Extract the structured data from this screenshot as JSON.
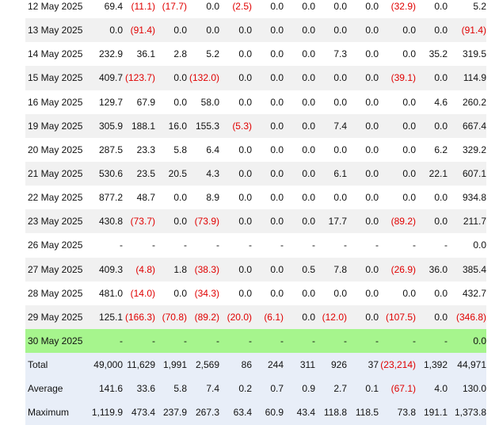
{
  "rows": [
    {
      "date": "12 May 2025",
      "values": [
        "69.4",
        "(11.1)",
        "(17.7)",
        "0.0",
        "(2.5)",
        "0.0",
        "0.0",
        "0.0",
        "0.0",
        "(32.9)",
        "0.0",
        "5.2"
      ]
    },
    {
      "date": "13 May 2025",
      "values": [
        "0.0",
        "(91.4)",
        "0.0",
        "0.0",
        "0.0",
        "0.0",
        "0.0",
        "0.0",
        "0.0",
        "0.0",
        "0.0",
        "(91.4)"
      ]
    },
    {
      "date": "14 May 2025",
      "values": [
        "232.9",
        "36.1",
        "2.8",
        "5.2",
        "0.0",
        "0.0",
        "0.0",
        "7.3",
        "0.0",
        "0.0",
        "35.2",
        "319.5"
      ]
    },
    {
      "date": "15 May 2025",
      "values": [
        "409.7",
        "(123.7)",
        "0.0",
        "(132.0)",
        "0.0",
        "0.0",
        "0.0",
        "0.0",
        "0.0",
        "(39.1)",
        "0.0",
        "114.9"
      ]
    },
    {
      "date": "16 May 2025",
      "values": [
        "129.7",
        "67.9",
        "0.0",
        "58.0",
        "0.0",
        "0.0",
        "0.0",
        "0.0",
        "0.0",
        "0.0",
        "4.6",
        "260.2"
      ]
    },
    {
      "date": "19 May 2025",
      "values": [
        "305.9",
        "188.1",
        "16.0",
        "155.3",
        "(5.3)",
        "0.0",
        "0.0",
        "7.4",
        "0.0",
        "0.0",
        "0.0",
        "667.4"
      ]
    },
    {
      "date": "20 May 2025",
      "values": [
        "287.5",
        "23.3",
        "5.8",
        "6.4",
        "0.0",
        "0.0",
        "0.0",
        "0.0",
        "0.0",
        "0.0",
        "6.2",
        "329.2"
      ]
    },
    {
      "date": "21 May 2025",
      "values": [
        "530.6",
        "23.5",
        "20.5",
        "4.3",
        "0.0",
        "0.0",
        "0.0",
        "6.1",
        "0.0",
        "0.0",
        "22.1",
        "607.1"
      ]
    },
    {
      "date": "22 May 2025",
      "values": [
        "877.2",
        "48.7",
        "0.0",
        "8.9",
        "0.0",
        "0.0",
        "0.0",
        "0.0",
        "0.0",
        "0.0",
        "0.0",
        "934.8"
      ]
    },
    {
      "date": "23 May 2025",
      "values": [
        "430.8",
        "(73.7)",
        "0.0",
        "(73.9)",
        "0.0",
        "0.0",
        "0.0",
        "17.7",
        "0.0",
        "(89.2)",
        "0.0",
        "211.7"
      ]
    },
    {
      "date": "26 May 2025",
      "values": [
        "-",
        "-",
        "-",
        "-",
        "-",
        "-",
        "-",
        "-",
        "-",
        "-",
        "-",
        "0.0"
      ]
    },
    {
      "date": "27 May 2025",
      "values": [
        "409.3",
        "(4.8)",
        "1.8",
        "(38.3)",
        "0.0",
        "0.0",
        "0.5",
        "7.8",
        "0.0",
        "(26.9)",
        "36.0",
        "385.4"
      ]
    },
    {
      "date": "28 May 2025",
      "values": [
        "481.0",
        "(14.0)",
        "0.0",
        "(34.3)",
        "0.0",
        "0.0",
        "0.0",
        "0.0",
        "0.0",
        "0.0",
        "0.0",
        "432.7"
      ]
    },
    {
      "date": "29 May 2025",
      "values": [
        "125.1",
        "(166.3)",
        "(70.8)",
        "(89.2)",
        "(20.0)",
        "(6.1)",
        "0.0",
        "(12.0)",
        "0.0",
        "(107.5)",
        "0.0",
        "(346.8)"
      ]
    },
    {
      "date": "30 May 2025",
      "values": [
        "-",
        "-",
        "-",
        "-",
        "-",
        "-",
        "-",
        "-",
        "-",
        "-",
        "-",
        "0.0"
      ],
      "highlight": true
    }
  ],
  "summary": [
    {
      "label": "Total",
      "values": [
        "49,000",
        "11,629",
        "1,991",
        "2,569",
        "86",
        "244",
        "311",
        "926",
        "37",
        "(23,214)",
        "1,392",
        "44,971"
      ]
    },
    {
      "label": "Average",
      "values": [
        "141.6",
        "33.6",
        "5.8",
        "7.4",
        "0.2",
        "0.7",
        "0.9",
        "2.7",
        "0.1",
        "(67.1)",
        "4.0",
        "130.0"
      ]
    },
    {
      "label": "Maximum",
      "values": [
        "1,119.9",
        "473.4",
        "237.9",
        "267.3",
        "63.4",
        "60.9",
        "43.4",
        "118.8",
        "118.5",
        "73.8",
        "191.1",
        "1,373.8"
      ]
    }
  ],
  "colors": {
    "negative": "#e00000",
    "highlight": "#a6f58d",
    "alt_row": "#f1f1f1",
    "summary": "#e8eef8"
  }
}
